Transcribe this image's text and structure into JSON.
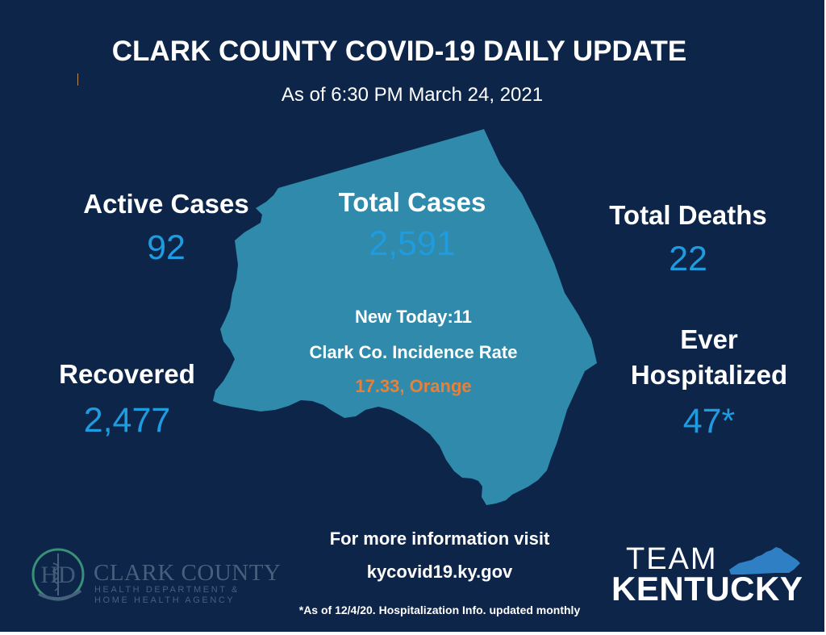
{
  "header": {
    "title": "CLARK COUNTY COVID-19 DAILY UPDATE",
    "as_of": "As of 6:30 PM March 24, 2021"
  },
  "stats": {
    "active": {
      "label": "Active Cases",
      "value": "92"
    },
    "total": {
      "label": "Total Cases",
      "value": "2,591"
    },
    "deaths": {
      "label": "Total Deaths",
      "value": "22"
    },
    "recovered": {
      "label": "Recovered",
      "value": "2,477"
    },
    "hospitalized": {
      "label_line1": "Ever",
      "label_line2": "Hospitalized",
      "value": "47*"
    }
  },
  "map_overlay": {
    "new_today": "New Today:11",
    "incidence_label": "Clark Co. Incidence Rate",
    "incidence_value": "17.33, Orange"
  },
  "footer": {
    "more_info": "For more information visit",
    "website": "kycovid19.ky.gov",
    "footnote": "*As of 12/4/20. Hospitalization Info. updated monthly"
  },
  "logos": {
    "health_dept": {
      "monogram": "HD",
      "name": "CLARK COUNTY",
      "line1": "HEALTH DEPARTMENT &",
      "line2": "HOME HEALTH AGENCY"
    },
    "team_kentucky": {
      "word1": "TEAM",
      "word2": "KENTUCKY"
    }
  },
  "colors": {
    "background": "#0d2549",
    "map": "#2f8aab",
    "stat_value": "#1f9be0",
    "incidence_orange": "#e8803a"
  }
}
